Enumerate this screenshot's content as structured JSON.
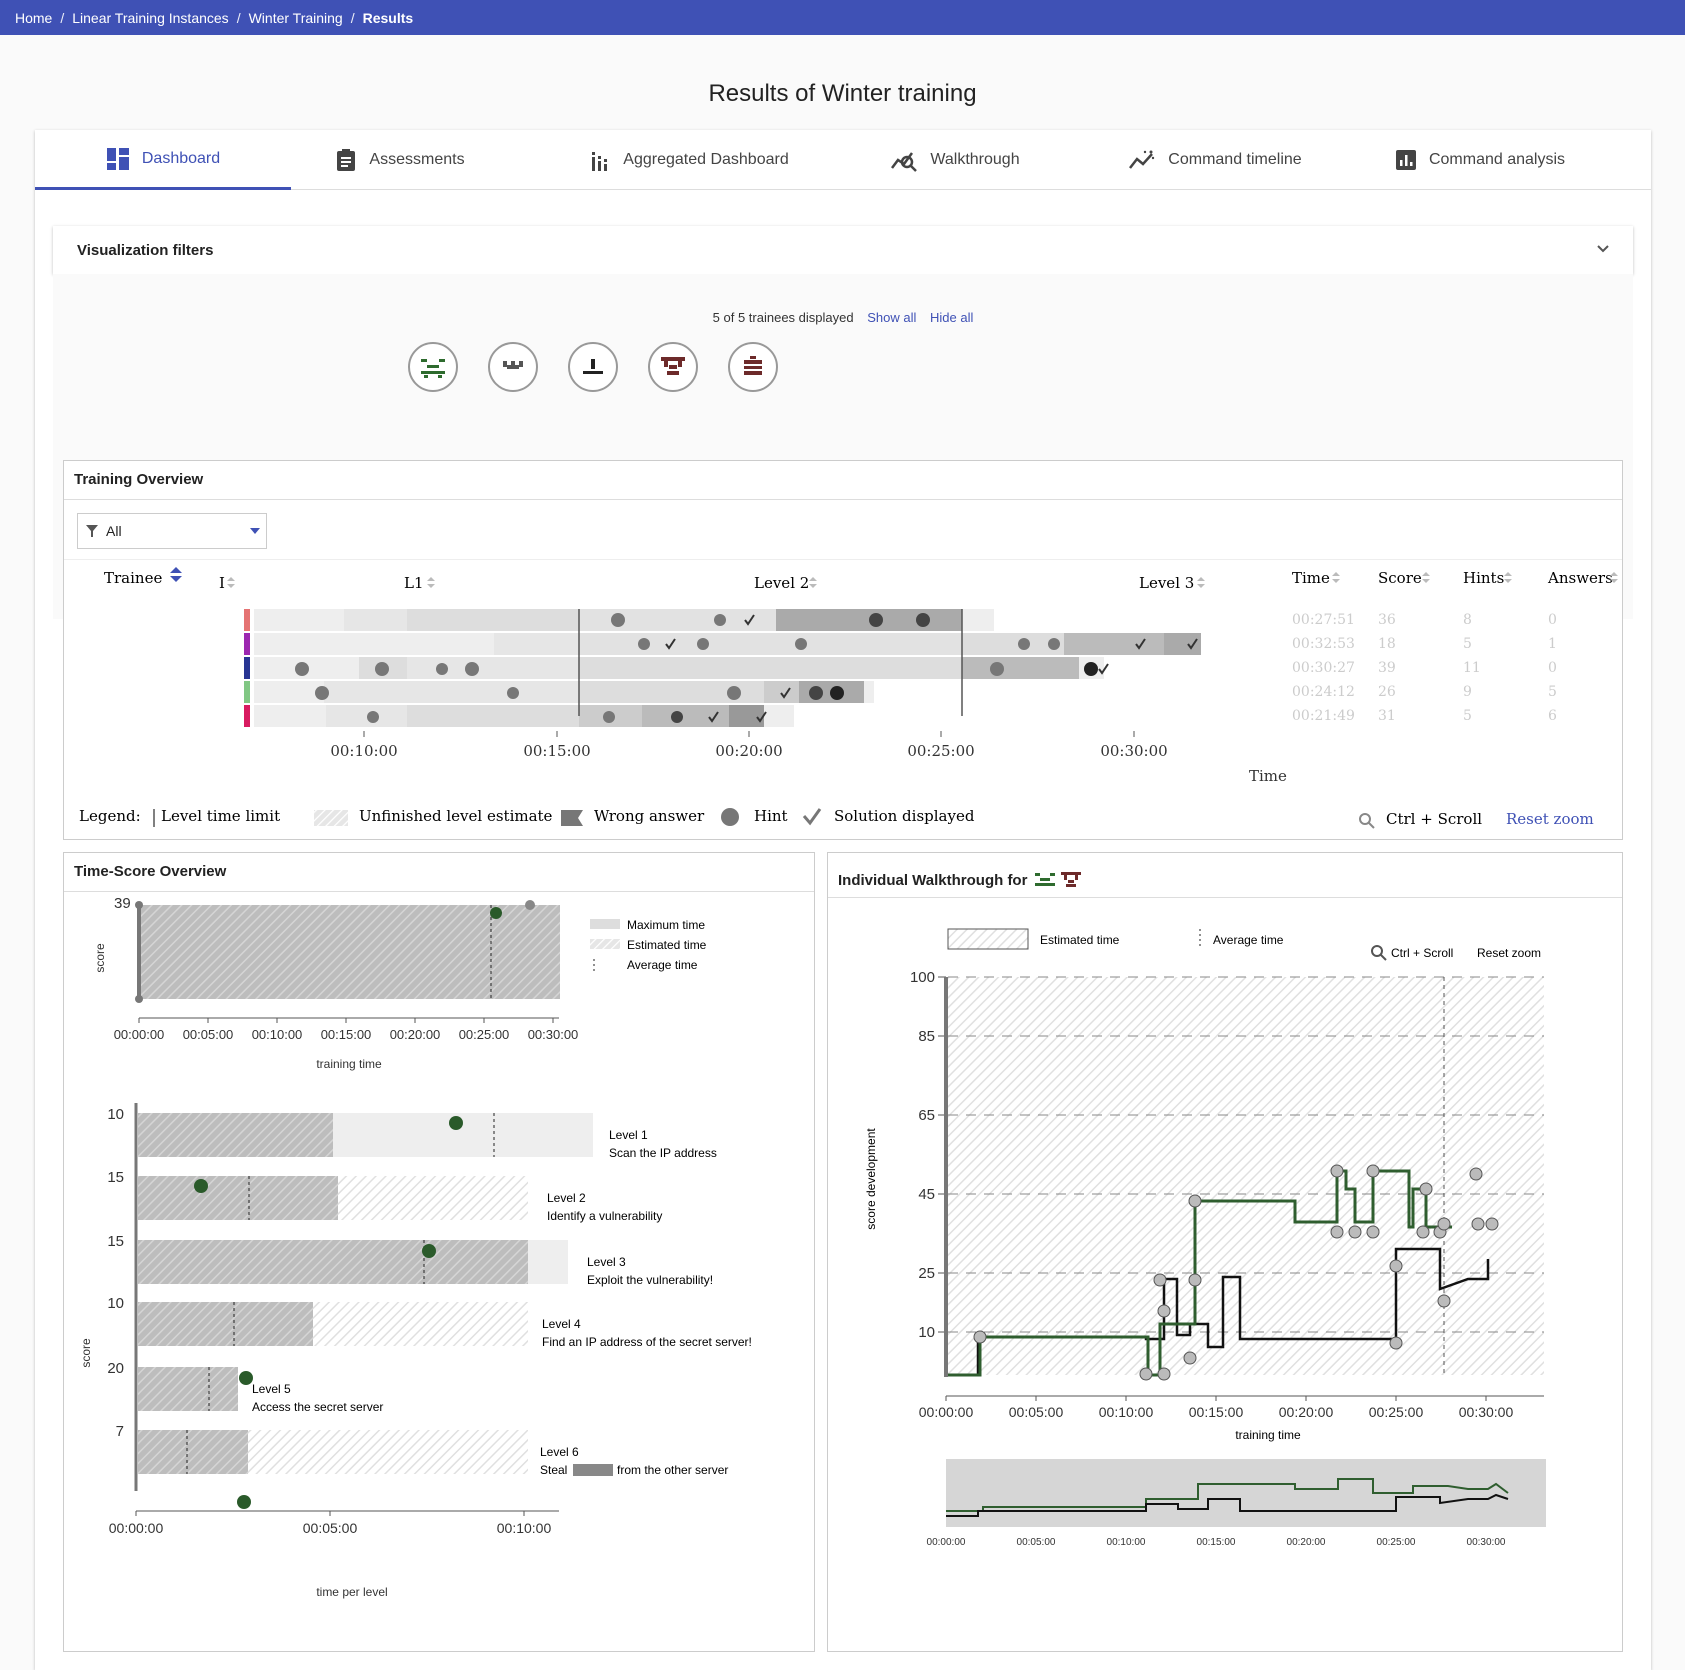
{
  "breadcrumb": [
    "Home",
    "Linear Training Instances",
    "Winter Training",
    "Results"
  ],
  "page_title": "Results of Winter training",
  "tabs": [
    {
      "label": "Dashboard",
      "icon": "dashboard-icon",
      "active": true
    },
    {
      "label": "Assessments",
      "icon": "clipboard-icon",
      "active": false
    },
    {
      "label": "Aggregated Dashboard",
      "icon": "bar-chart-icon",
      "active": false
    },
    {
      "label": "Walkthrough",
      "icon": "walkthrough-icon",
      "active": false
    },
    {
      "label": "Command timeline",
      "icon": "timeline-icon",
      "active": false
    },
    {
      "label": "Command analysis",
      "icon": "analysis-icon",
      "active": false
    }
  ],
  "filters": {
    "title": "Visualization filters",
    "count_text": "5 of 5 trainees displayed",
    "show_all": "Show all",
    "hide_all": "Hide all"
  },
  "overview": {
    "title": "Training Overview",
    "select_value": "All",
    "columns": [
      "Trainee",
      "I",
      "L1",
      "Level 2",
      "Level 3"
    ],
    "stats_headers": [
      "Time",
      "Score",
      "Hints",
      "Answers"
    ],
    "rows": [
      {
        "color": "#e57373",
        "time": "00:27:51",
        "score": "36",
        "hints": "8",
        "answers": "0"
      },
      {
        "color": "#9c27b0",
        "time": "00:32:53",
        "score": "18",
        "hints": "5",
        "answers": "1"
      },
      {
        "color": "#283593",
        "time": "00:30:27",
        "score": "39",
        "hints": "11",
        "answers": "0"
      },
      {
        "color": "#81c784",
        "time": "00:24:12",
        "score": "26",
        "hints": "9",
        "answers": "5"
      },
      {
        "color": "#d81b60",
        "time": "00:21:49",
        "score": "31",
        "hints": "5",
        "answers": "6"
      }
    ],
    "x_ticks": [
      "00:10:00",
      "00:15:00",
      "00:20:00",
      "00:25:00",
      "00:30:00"
    ],
    "x_label": "Time",
    "legend_label": "Legend:",
    "legend": [
      "Level time limit",
      "Unfinished level estimate",
      "Wrong answer",
      "Hint",
      "Solution displayed"
    ],
    "zoom_hint": "Ctrl + Scroll",
    "reset_zoom": "Reset zoom"
  },
  "time_score": {
    "title": "Time-Score Overview",
    "top_ymax": "39",
    "top_ylabel": "score",
    "top_ticks": [
      "00:00:00",
      "00:05:00",
      "00:10:00",
      "00:15:00",
      "00:20:00",
      "00:25:00",
      "00:30:00"
    ],
    "top_xlabel": "training time",
    "legend": [
      "Maximum time",
      "Estimated time",
      "Average time"
    ],
    "levels": [
      {
        "max": "10",
        "name": "Level 1",
        "desc": "Scan the IP address"
      },
      {
        "max": "15",
        "name": "Level 2",
        "desc": "Identify a vulnerability"
      },
      {
        "max": "15",
        "name": "Level 3",
        "desc": "Exploit the vulnerability!"
      },
      {
        "max": "10",
        "name": "Level 4",
        "desc": "Find an IP address of the secret server!"
      },
      {
        "max": "20",
        "name": "Level 5",
        "desc": "Access the secret server"
      },
      {
        "max": "7",
        "name": "Level 6",
        "desc_pre": "Steal",
        "desc_post": "from the other server"
      }
    ],
    "bottom_ylabel": "score",
    "bottom_ticks": [
      "00:00:00",
      "00:05:00",
      "00:10:00"
    ],
    "bottom_xlabel": "time per level"
  },
  "walkthrough": {
    "title": "Individual Walkthrough for",
    "legend_est": "Estimated time",
    "legend_avg": "Average time",
    "zoom_hint": "Ctrl + Scroll",
    "reset_zoom": "Reset zoom",
    "ylabel": "score development",
    "xlabel": "training time",
    "y_ticks": [
      "100",
      "85",
      "65",
      "45",
      "25",
      "10"
    ],
    "x_ticks": [
      "00:00:00",
      "00:05:00",
      "00:10:00",
      "00:15:00",
      "00:20:00",
      "00:25:00",
      "00:30:00"
    ]
  }
}
